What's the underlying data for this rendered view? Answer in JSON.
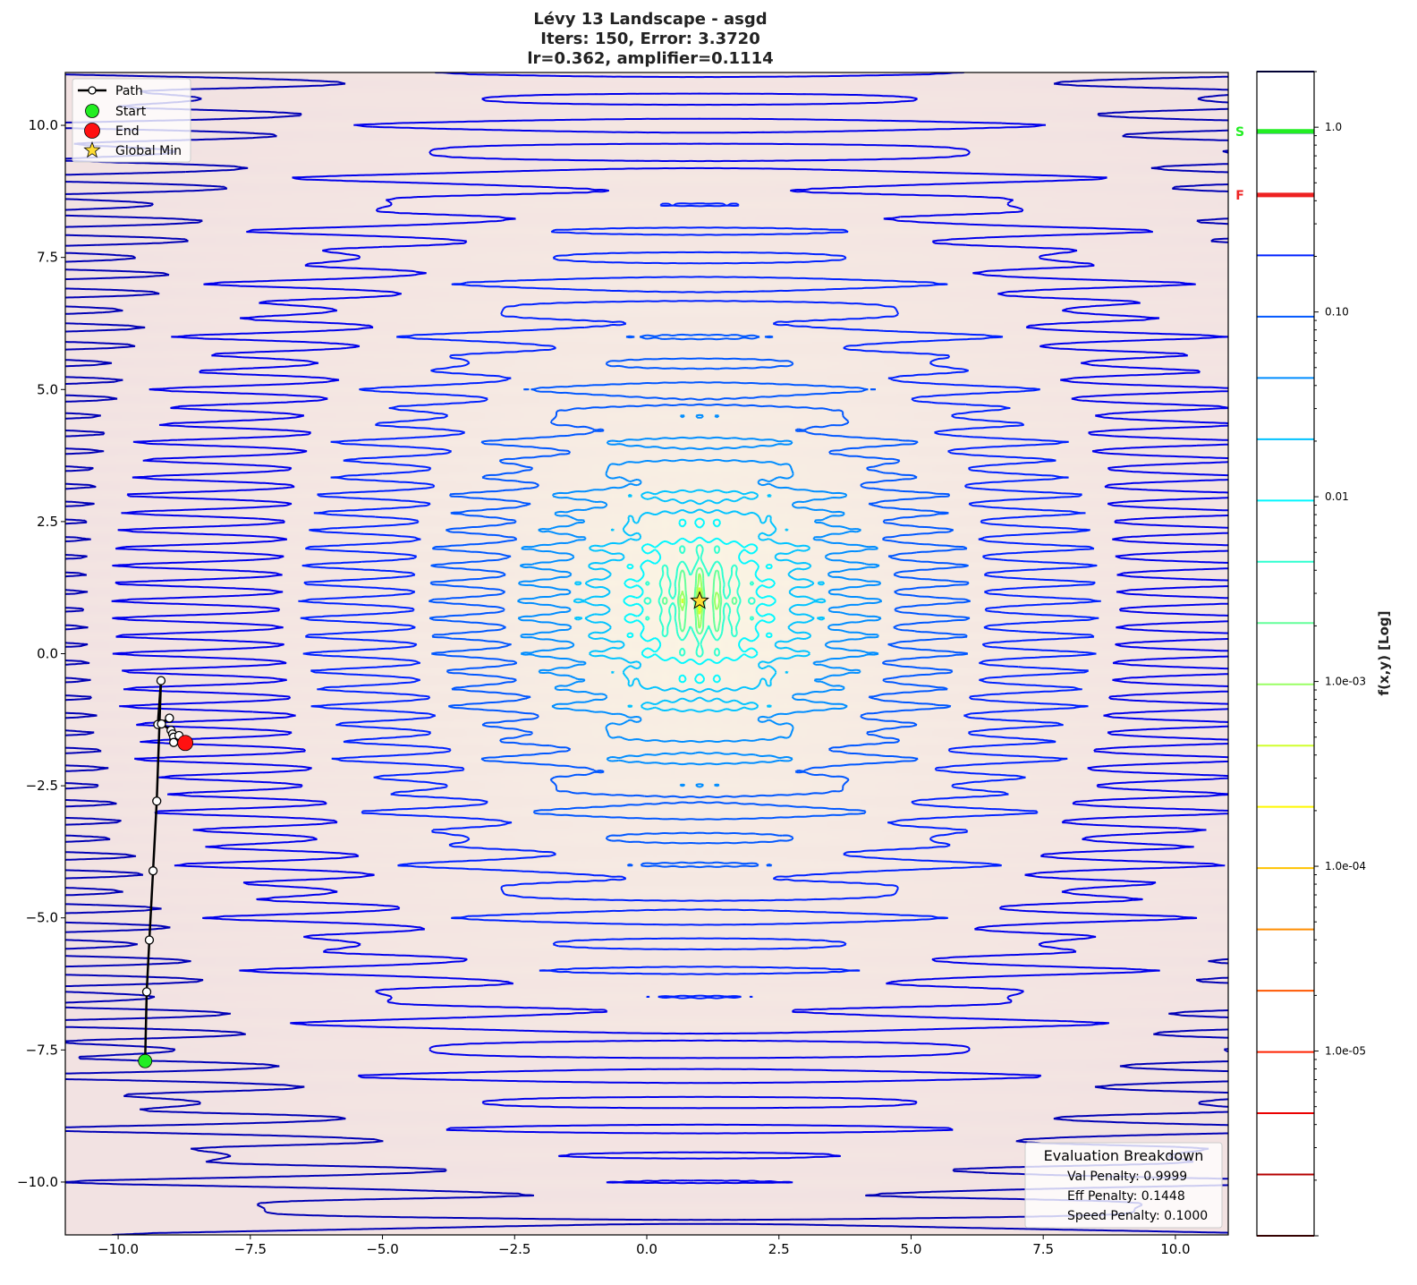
{
  "chart_data": {
    "type": "contour",
    "title": [
      "Lévy 13 Landscape - asgd",
      "Iters: 150, Error: 3.3720",
      "lr=0.362, amplifier=0.1114"
    ],
    "function": "Lévy 13",
    "xlim": [
      -11,
      11
    ],
    "ylim": [
      -11,
      11
    ],
    "x_ticks": [
      -10.0,
      -7.5,
      -5.0,
      -2.5,
      0.0,
      2.5,
      5.0,
      7.5,
      10.0
    ],
    "x_tick_labels": [
      "−10.0",
      "−7.5",
      "−5.0",
      "−2.5",
      "0.0",
      "2.5",
      "5.0",
      "7.5",
      "10.0"
    ],
    "y_ticks": [
      10.0,
      7.5,
      5.0,
      2.5,
      0.0,
      -2.5,
      -5.0,
      -7.5,
      -10.0
    ],
    "y_tick_labels": [
      "10.0",
      "7.5",
      "5.0",
      "2.5",
      "0.0",
      "−2.5",
      "−5.0",
      "−7.5",
      "−10.0"
    ],
    "grid": false,
    "colorbar": {
      "label": "f(x,y) [Log]",
      "scale": "log",
      "range": [
        1e-06,
        2
      ],
      "ticks": [
        1.0,
        0.1,
        0.01,
        0.001,
        0.0001,
        1e-05
      ],
      "tick_labels": [
        "1.0",
        "0.10",
        "0.01",
        "1.0e-03",
        "1.0e-04",
        "1.0e-05"
      ],
      "colormap": "jet_r",
      "markers": [
        {
          "label": "S",
          "value": 0.95,
          "color": "#22ee22"
        },
        {
          "label": "F",
          "value": 0.43,
          "color": "#ee2222"
        }
      ]
    },
    "path": {
      "x": [
        -9.49,
        -9.46,
        -9.41,
        -9.34,
        -9.27,
        -9.19,
        -9.25,
        -9.03,
        -9.18,
        -9.0,
        -8.97,
        -8.95,
        -8.85,
        -8.95,
        -8.73
      ],
      "y": [
        -7.71,
        -6.4,
        -5.42,
        -4.11,
        -2.79,
        -0.51,
        -1.34,
        -1.22,
        -1.33,
        -1.45,
        -1.52,
        -1.58,
        -1.55,
        -1.68,
        -1.69
      ]
    },
    "start": {
      "x": -9.49,
      "y": -7.71,
      "color": "#22ee22"
    },
    "end": {
      "x": -8.73,
      "y": -1.69,
      "color": "#ff1111"
    },
    "global_min": {
      "x": 1.0,
      "y": 1.0,
      "color": "#ffdd33"
    },
    "legend": {
      "placement": "top-left",
      "entries": [
        "Path",
        "Start",
        "End",
        "Global Min"
      ]
    },
    "breakdown": {
      "title": "Evaluation Breakdown",
      "lines": [
        "Val Penalty: 0.9999",
        "Eff Penalty: 0.1448",
        "Speed Penalty: 0.1000"
      ]
    }
  }
}
